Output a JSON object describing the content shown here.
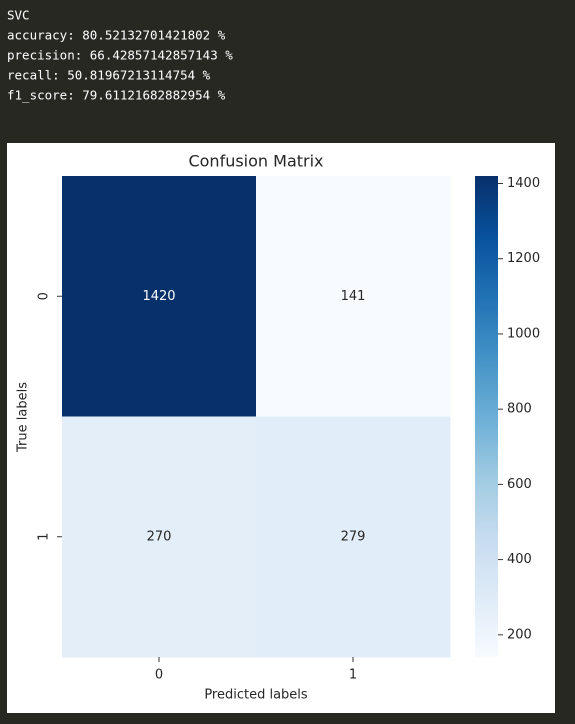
{
  "output_lines": [
    "SVC",
    "accuracy: 80.52132701421802 %",
    "precision: 66.42857142857143 %",
    "recall: 50.81967213114754 %",
    "f1_score: 79.61121682882954 %"
  ],
  "chart_data": {
    "type": "heatmap",
    "title": "Confusion Matrix",
    "x_label": "Predicted labels",
    "y_label": "True labels",
    "x_categories": [
      "0",
      "1"
    ],
    "y_categories": [
      "0",
      "1"
    ],
    "z": [
      [
        1420,
        141
      ],
      [
        270,
        279
      ]
    ],
    "colormap": [
      "#f7fbff",
      "#deebf7",
      "#c6dbef",
      "#9ecae1",
      "#6baed6",
      "#4292c6",
      "#2171b5",
      "#08519c",
      "#08306b"
    ],
    "clim": [
      141,
      1420
    ],
    "cticks": [
      200,
      400,
      600,
      800,
      1000,
      1200,
      1400
    ]
  }
}
